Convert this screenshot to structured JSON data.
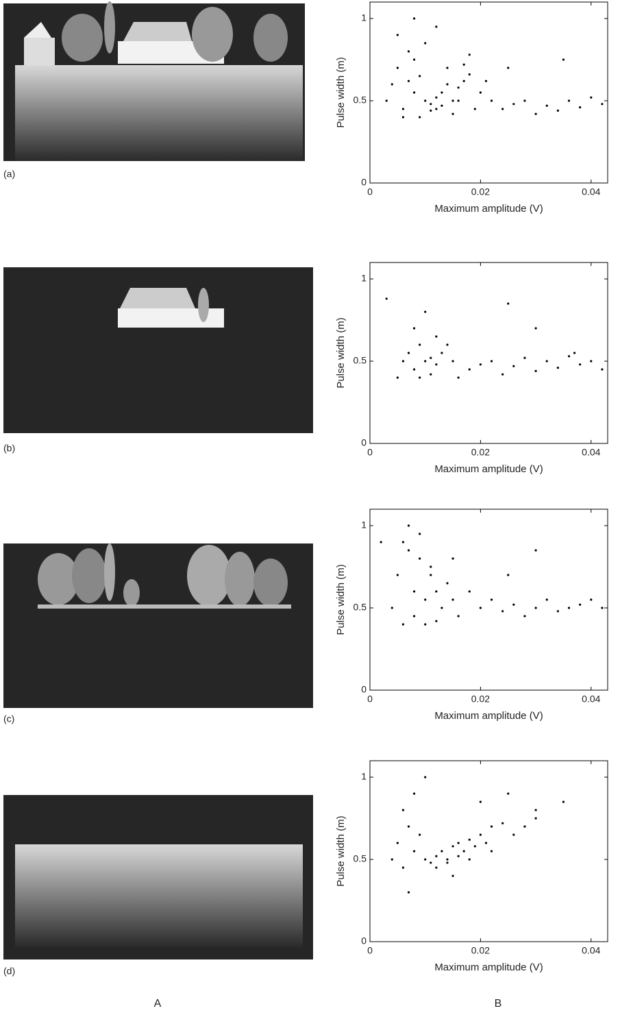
{
  "panel_labels": [
    "(a)",
    "(b)",
    "(c)",
    "(d)"
  ],
  "column_labels": [
    "A",
    "B"
  ],
  "chart_data": [
    {
      "type": "scatter",
      "x_label": "Maximum amplitude (V)",
      "y_label": "Pulse width (m)",
      "color": "#000000",
      "xlim": [
        0,
        0.043
      ],
      "ylim": [
        0,
        1.1
      ],
      "xticks": [
        0,
        0.02,
        0.04
      ],
      "yticks": [
        0,
        0.5,
        1
      ],
      "x": [
        0.004,
        0.005,
        0.006,
        0.007,
        0.008,
        0.009,
        0.01,
        0.011,
        0.012,
        0.013,
        0.014,
        0.015,
        0.016,
        0.017,
        0.018,
        0.02,
        0.022,
        0.024,
        0.026,
        0.028,
        0.03,
        0.032,
        0.034,
        0.036,
        0.038,
        0.04,
        0.042,
        0.006,
        0.008,
        0.01,
        0.012,
        0.014,
        0.016,
        0.011,
        0.013,
        0.015,
        0.017,
        0.009,
        0.007,
        0.019,
        0.021,
        0.005,
        0.008,
        0.012,
        0.018,
        0.025,
        0.003,
        0.035
      ],
      "y": [
        0.6,
        0.7,
        0.45,
        0.8,
        0.55,
        0.65,
        0.5,
        0.48,
        0.52,
        0.55,
        0.6,
        0.5,
        0.58,
        0.62,
        0.66,
        0.55,
        0.5,
        0.45,
        0.48,
        0.5,
        0.42,
        0.47,
        0.44,
        0.5,
        0.46,
        0.52,
        0.48,
        0.4,
        0.75,
        0.85,
        0.45,
        0.7,
        0.5,
        0.44,
        0.47,
        0.42,
        0.72,
        0.4,
        0.62,
        0.45,
        0.62,
        0.9,
        1.0,
        0.95,
        0.78,
        0.7,
        0.5,
        0.75
      ]
    },
    {
      "type": "scatter",
      "x_label": "Maximum amplitude (V)",
      "y_label": "Pulse width (m)",
      "color": "#000000",
      "xlim": [
        0,
        0.043
      ],
      "ylim": [
        0,
        1.1
      ],
      "xticks": [
        0,
        0.02,
        0.04
      ],
      "yticks": [
        0,
        0.5,
        1
      ],
      "x": [
        0.006,
        0.007,
        0.008,
        0.009,
        0.01,
        0.011,
        0.012,
        0.013,
        0.008,
        0.01,
        0.012,
        0.015,
        0.018,
        0.02,
        0.022,
        0.024,
        0.026,
        0.028,
        0.03,
        0.032,
        0.034,
        0.036,
        0.038,
        0.04,
        0.042,
        0.009,
        0.011,
        0.003,
        0.014,
        0.025,
        0.03,
        0.005,
        0.037,
        0.016
      ],
      "y": [
        0.5,
        0.55,
        0.45,
        0.6,
        0.5,
        0.52,
        0.48,
        0.55,
        0.7,
        0.8,
        0.65,
        0.5,
        0.45,
        0.48,
        0.5,
        0.42,
        0.47,
        0.52,
        0.44,
        0.5,
        0.46,
        0.53,
        0.48,
        0.5,
        0.45,
        0.4,
        0.42,
        0.88,
        0.6,
        0.85,
        0.7,
        0.4,
        0.55,
        0.4
      ]
    },
    {
      "type": "scatter",
      "x_label": "Maximum amplitude (V)",
      "y_label": "Pulse width (m)",
      "color": "#000000",
      "xlim": [
        0,
        0.043
      ],
      "ylim": [
        0,
        1.1
      ],
      "xticks": [
        0,
        0.02,
        0.04
      ],
      "yticks": [
        0,
        0.5,
        1
      ],
      "x": [
        0.004,
        0.005,
        0.006,
        0.007,
        0.008,
        0.009,
        0.01,
        0.011,
        0.012,
        0.013,
        0.014,
        0.015,
        0.016,
        0.018,
        0.02,
        0.022,
        0.024,
        0.026,
        0.028,
        0.03,
        0.032,
        0.034,
        0.036,
        0.038,
        0.04,
        0.042,
        0.006,
        0.008,
        0.01,
        0.012,
        0.007,
        0.009,
        0.011,
        0.015,
        0.025,
        0.002,
        0.03
      ],
      "y": [
        0.5,
        0.7,
        0.9,
        1.0,
        0.6,
        0.8,
        0.55,
        0.7,
        0.6,
        0.5,
        0.65,
        0.55,
        0.45,
        0.6,
        0.5,
        0.55,
        0.48,
        0.52,
        0.45,
        0.5,
        0.55,
        0.48,
        0.5,
        0.52,
        0.55,
        0.5,
        0.4,
        0.45,
        0.4,
        0.42,
        0.85,
        0.95,
        0.75,
        0.8,
        0.7,
        0.9,
        0.85
      ]
    },
    {
      "type": "scatter",
      "x_label": "Maximum amplitude (V)",
      "y_label": "Pulse width (m)",
      "color": "#000000",
      "xlim": [
        0,
        0.043
      ],
      "ylim": [
        0,
        1.1
      ],
      "xticks": [
        0,
        0.02,
        0.04
      ],
      "yticks": [
        0,
        0.5,
        1
      ],
      "x": [
        0.005,
        0.006,
        0.007,
        0.008,
        0.009,
        0.01,
        0.011,
        0.012,
        0.013,
        0.014,
        0.015,
        0.016,
        0.017,
        0.018,
        0.019,
        0.02,
        0.021,
        0.022,
        0.024,
        0.026,
        0.028,
        0.03,
        0.012,
        0.014,
        0.016,
        0.018,
        0.008,
        0.01,
        0.006,
        0.02,
        0.025,
        0.03,
        0.004,
        0.035,
        0.007,
        0.015,
        0.022
      ],
      "y": [
        0.6,
        0.45,
        0.7,
        0.55,
        0.65,
        0.5,
        0.48,
        0.52,
        0.55,
        0.5,
        0.58,
        0.6,
        0.55,
        0.62,
        0.58,
        0.65,
        0.6,
        0.7,
        0.72,
        0.65,
        0.7,
        0.75,
        0.45,
        0.48,
        0.52,
        0.5,
        0.9,
        1.0,
        0.8,
        0.85,
        0.9,
        0.8,
        0.5,
        0.85,
        0.3,
        0.4,
        0.55
      ]
    }
  ]
}
